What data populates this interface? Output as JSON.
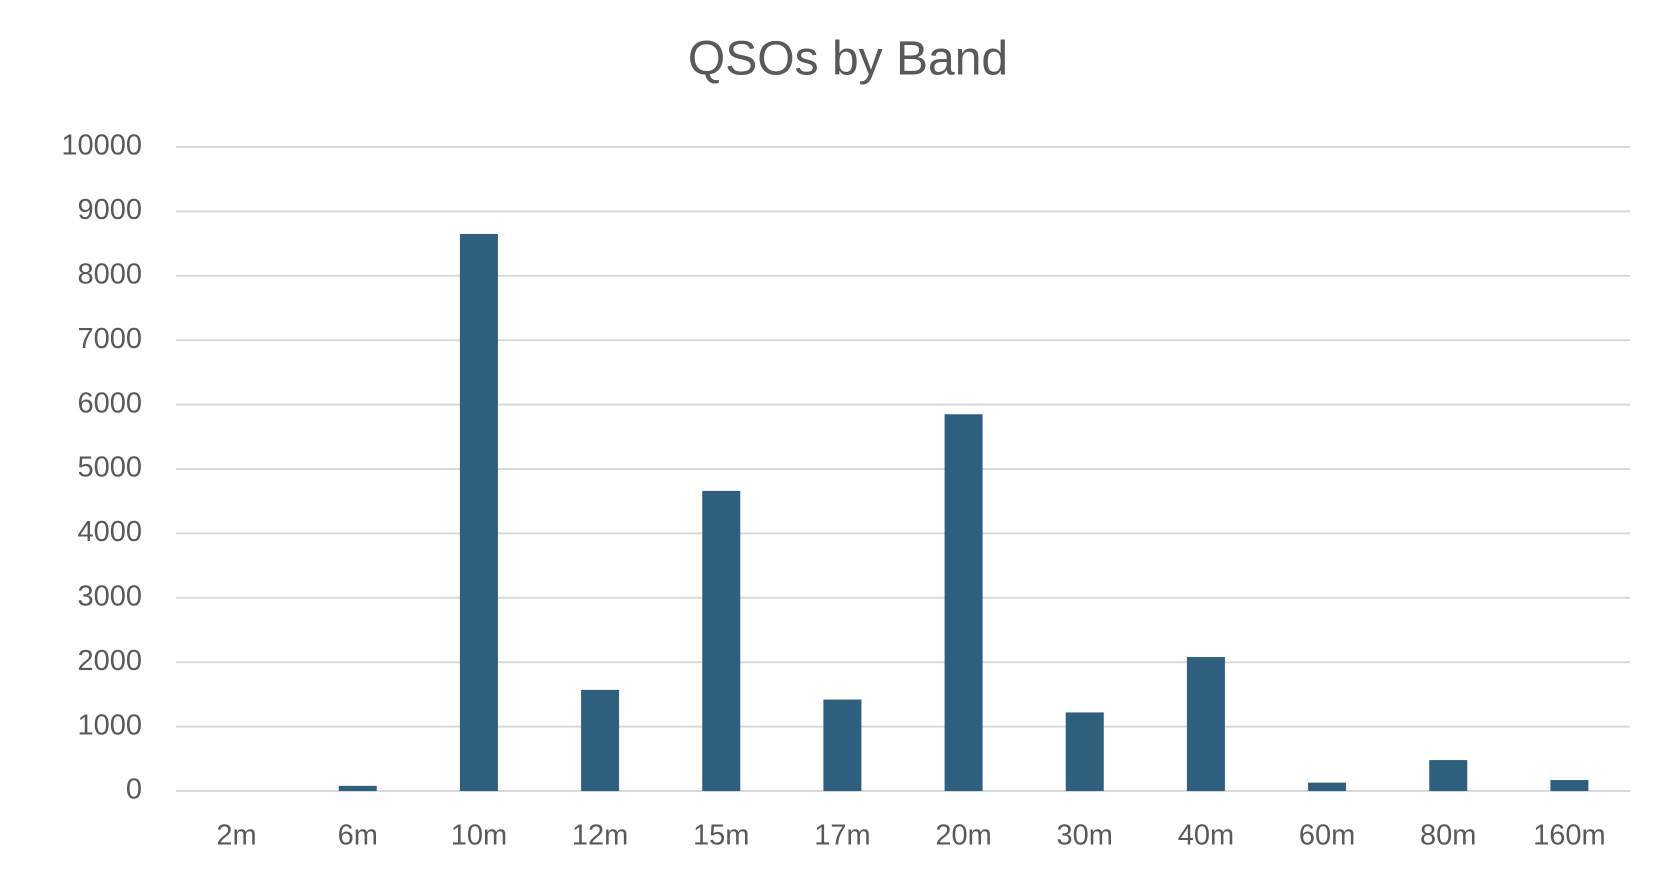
{
  "chart_data": {
    "type": "bar",
    "title": "QSOs by Band",
    "categories": [
      "2m",
      "6m",
      "10m",
      "12m",
      "15m",
      "17m",
      "20m",
      "30m",
      "40m",
      "60m",
      "80m",
      "160m"
    ],
    "values": [
      0,
      80,
      8650,
      1570,
      4660,
      1420,
      5850,
      1220,
      2080,
      130,
      480,
      170
    ],
    "color": "#2e5f7f",
    "ylim": [
      0,
      10000
    ],
    "yticks": [
      0,
      1000,
      2000,
      3000,
      4000,
      5000,
      6000,
      7000,
      8000,
      9000,
      10000
    ],
    "grid": true
  }
}
